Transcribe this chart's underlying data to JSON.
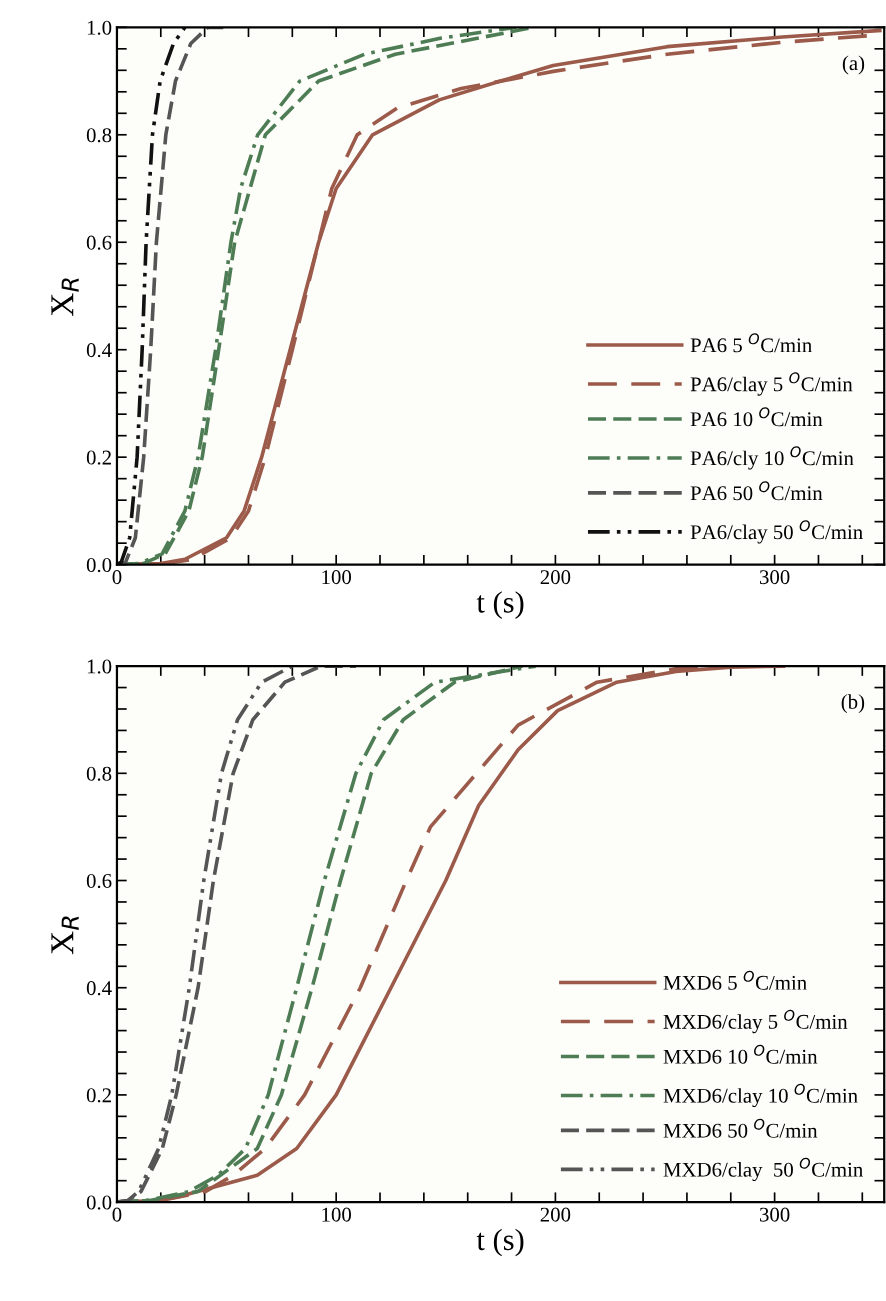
{
  "chart_data": [
    {
      "type": "line",
      "xlabel": "t (s)",
      "ylabel": "X$_{R}$",
      "annotations": [
        "(a)"
      ],
      "legend": "lower right",
      "grid": false,
      "xlim": [
        0,
        350
      ],
      "ylim": [
        0,
        1.0
      ],
      "xticks": [
        0,
        {
          "value": 20,
          "label": null
        },
        {
          "value": 40,
          "label": null
        },
        {
          "value": 60,
          "label": null
        },
        {
          "value": 80,
          "label": null
        },
        100,
        {
          "value": 120,
          "label": null
        },
        {
          "value": 140,
          "label": null
        },
        {
          "value": 160,
          "label": null
        },
        {
          "value": 180,
          "label": null
        },
        200,
        {
          "value": 220,
          "label": null
        },
        {
          "value": 240,
          "label": null
        },
        {
          "value": 260,
          "label": null
        },
        {
          "value": 280,
          "label": null
        },
        300,
        {
          "value": 320,
          "label": null
        },
        {
          "value": 340,
          "label": null
        }
      ],
      "yticks": [
        {
          "value": 0,
          "label": "0.0"
        },
        {
          "value": 0.04,
          "label": null
        },
        {
          "value": 0.08,
          "label": null
        },
        {
          "value": 0.12,
          "label": null
        },
        {
          "value": 0.16,
          "label": null
        },
        {
          "value": 0.2,
          "label": "0.2"
        },
        {
          "value": 0.24,
          "label": null
        },
        {
          "value": 0.28,
          "label": null
        },
        {
          "value": 0.32,
          "label": null
        },
        {
          "value": 0.36,
          "label": null
        },
        {
          "value": 0.4,
          "label": "0.4"
        },
        {
          "value": 0.44,
          "label": null
        },
        {
          "value": 0.48,
          "label": null
        },
        {
          "value": 0.52,
          "label": null
        },
        {
          "value": 0.56,
          "label": null
        },
        {
          "value": 0.6,
          "label": "0.6"
        },
        {
          "value": 0.64,
          "label": null
        },
        {
          "value": 0.68,
          "label": null
        },
        {
          "value": 0.72,
          "label": null
        },
        {
          "value": 0.76,
          "label": null
        },
        {
          "value": 0.8,
          "label": "0.8"
        },
        {
          "value": 0.84,
          "label": null
        },
        {
          "value": 0.88,
          "label": null
        },
        {
          "value": 0.92,
          "label": null
        },
        {
          "value": 0.96,
          "label": null
        },
        {
          "value": 1.0,
          "label": "1.0"
        }
      ],
      "series": [
        {
          "name": "PA6 5 $^{O}$C/min",
          "color": "#9b5a4a",
          "line_style": "solid",
          "x": [
            0,
            20,
            31,
            50,
            58,
            66,
            79,
            92,
            100,
            116.6,
            147,
            175,
            199,
            251,
            303.6,
            348
          ],
          "values": [
            0,
            0.002,
            0.01,
            0.05,
            0.1,
            0.2,
            0.4,
            0.6,
            0.7,
            0.8,
            0.865,
            0.9,
            0.929,
            0.964,
            0.982,
            0.994
          ]
        },
        {
          "name": "PA6/clay 5 $^{O}$C/min",
          "color": "#9b5a4a",
          "line_style": "long_dashed",
          "x": [
            0,
            22,
            34.5,
            52,
            60,
            67.7,
            80,
            92,
            98,
            109.6,
            128,
            157,
            199,
            251,
            303,
            348
          ],
          "values": [
            0,
            0.002,
            0.01,
            0.05,
            0.1,
            0.2,
            0.4,
            0.6,
            0.7,
            0.8,
            0.85,
            0.886,
            0.918,
            0.95,
            0.972,
            0.986
          ]
        },
        {
          "name": "PA6 10 $^{O}$C/min",
          "color": "#4e7d55",
          "line_style": "dashed",
          "x": [
            0,
            12,
            22,
            32.8,
            38.9,
            46.4,
            53.7,
            67.7,
            92,
            127,
            165,
            190
          ],
          "values": [
            0,
            0.002,
            0.02,
            0.1,
            0.2,
            0.4,
            0.6,
            0.8,
            0.9,
            0.95,
            0.98,
            1.0
          ]
        },
        {
          "name": "PA6/cly 10 $^{O}$C/min",
          "color": "#4e7d55",
          "line_style": "dashdot",
          "x": [
            0,
            10,
            20.6,
            31,
            37,
            45,
            52,
            56.4,
            64.2,
            83.4,
            113,
            148,
            182
          ],
          "values": [
            0,
            0.002,
            0.02,
            0.1,
            0.2,
            0.4,
            0.6,
            0.7,
            0.8,
            0.9,
            0.95,
            0.98,
            1.0
          ]
        },
        {
          "name": "PA6 50 $^{O}$C/min",
          "color": "#555555",
          "line_style": "dashed",
          "x": [
            0,
            4,
            8.4,
            12.2,
            15.4,
            18,
            22.3,
            26.7,
            33.7,
            41.5,
            48.5
          ],
          "values": [
            0,
            0.005,
            0.05,
            0.2,
            0.4,
            0.6,
            0.8,
            0.9,
            0.97,
            1.0,
            1.0
          ]
        },
        {
          "name": "PA6/clay 50 $^{O}$C/min",
          "color": "#111111",
          "line_style": "dashdotdot",
          "x": [
            0,
            2,
            5.8,
            9.2,
            11.5,
            13.3,
            16.2,
            19.7,
            25.8,
            31
          ],
          "values": [
            0,
            0.005,
            0.05,
            0.2,
            0.4,
            0.6,
            0.8,
            0.9,
            0.97,
            1.0
          ]
        }
      ]
    },
    {
      "type": "line",
      "xlabel": "t (s)",
      "ylabel": "X$_{R}$",
      "annotations": [
        "(b)"
      ],
      "legend": "lower right",
      "grid": false,
      "xlim": [
        0,
        350
      ],
      "ylim": [
        0,
        1.0
      ],
      "xticks": [
        0,
        {
          "value": 20,
          "label": null
        },
        {
          "value": 40,
          "label": null
        },
        {
          "value": 60,
          "label": null
        },
        {
          "value": 80,
          "label": null
        },
        100,
        {
          "value": 120,
          "label": null
        },
        {
          "value": 140,
          "label": null
        },
        {
          "value": 160,
          "label": null
        },
        {
          "value": 180,
          "label": null
        },
        200,
        {
          "value": 220,
          "label": null
        },
        {
          "value": 240,
          "label": null
        },
        {
          "value": 260,
          "label": null
        },
        {
          "value": 280,
          "label": null
        },
        300,
        {
          "value": 320,
          "label": null
        },
        {
          "value": 340,
          "label": null
        }
      ],
      "yticks": [
        {
          "value": 0,
          "label": "0.0"
        },
        {
          "value": 0.04,
          "label": null
        },
        {
          "value": 0.08,
          "label": null
        },
        {
          "value": 0.12,
          "label": null
        },
        {
          "value": 0.16,
          "label": null
        },
        {
          "value": 0.2,
          "label": "0.2"
        },
        {
          "value": 0.24,
          "label": null
        },
        {
          "value": 0.28,
          "label": null
        },
        {
          "value": 0.32,
          "label": null
        },
        {
          "value": 0.36,
          "label": null
        },
        {
          "value": 0.4,
          "label": "0.4"
        },
        {
          "value": 0.44,
          "label": null
        },
        {
          "value": 0.48,
          "label": null
        },
        {
          "value": 0.52,
          "label": null
        },
        {
          "value": 0.56,
          "label": null
        },
        {
          "value": 0.6,
          "label": "0.6"
        },
        {
          "value": 0.64,
          "label": null
        },
        {
          "value": 0.68,
          "label": null
        },
        {
          "value": 0.72,
          "label": null
        },
        {
          "value": 0.76,
          "label": null
        },
        {
          "value": 0.8,
          "label": "0.8"
        },
        {
          "value": 0.84,
          "label": null
        },
        {
          "value": 0.88,
          "label": null
        },
        {
          "value": 0.92,
          "label": null
        },
        {
          "value": 0.96,
          "label": null
        },
        {
          "value": 1.0,
          "label": "1.0"
        }
      ],
      "series": [
        {
          "name": "MXD6 5 $^{O}$C/min",
          "color": "#9b5a4a",
          "line_style": "solid",
          "x": [
            0,
            15,
            28,
            64,
            82,
            100,
            125,
            150,
            165,
            183,
            201,
            228,
            255,
            280,
            304
          ],
          "values": [
            0,
            0.001,
            0.01,
            0.05,
            0.1,
            0.2,
            0.4,
            0.6,
            0.74,
            0.844,
            0.917,
            0.97,
            0.99,
            0.998,
            1.0
          ]
        },
        {
          "name": "MXD6/clay 5 $^{O}$C/min",
          "color": "#9b5a4a",
          "line_style": "long_dashed",
          "x": [
            0,
            20,
            40.5,
            53,
            67.6,
            85.6,
            111,
            132,
            143,
            183,
            219,
            255,
            270
          ],
          "values": [
            0,
            0.003,
            0.02,
            0.05,
            0.1,
            0.2,
            0.4,
            0.6,
            0.7,
            0.89,
            0.97,
            0.995,
            1.0
          ]
        },
        {
          "name": "MXD6 10 $^{O}$C/min",
          "color": "#4e7d55",
          "line_style": "dashed",
          "x": [
            0,
            15,
            37,
            64,
            75,
            89,
            102,
            116,
            130.6,
            154,
            185
          ],
          "values": [
            0,
            0.003,
            0.02,
            0.1,
            0.2,
            0.4,
            0.6,
            0.8,
            0.9,
            0.97,
            1.0
          ]
        },
        {
          "name": "MXD6/clay 10 $^{O}$C/min",
          "color": "#4e7d55",
          "line_style": "dashdot",
          "x": [
            0,
            15,
            33,
            46,
            58.6,
            69,
            82,
            94.6,
            109,
            121.6,
            145,
            191
          ],
          "values": [
            0,
            0.004,
            0.02,
            0.05,
            0.1,
            0.2,
            0.4,
            0.6,
            0.8,
            0.9,
            0.97,
            1.0
          ]
        },
        {
          "name": "MXD6 50 $^{O}$C/min",
          "color": "#555555",
          "line_style": "dashed",
          "x": [
            0,
            5,
            11,
            20.7,
            27,
            37,
            44,
            53,
            62,
            76.6,
            93,
            109
          ],
          "values": [
            0,
            0.003,
            0.02,
            0.1,
            0.2,
            0.4,
            0.6,
            0.8,
            0.9,
            0.97,
            1.0,
            1.0
          ]
        },
        {
          "name": "MXD6/clay  50 $^{O}$C/min",
          "color": "#555555",
          "line_style": "dashdotdot",
          "x": [
            0,
            5,
            9.9,
            19,
            25,
            33,
            39.6,
            47.7,
            55,
            66,
            80
          ],
          "values": [
            0,
            0.003,
            0.02,
            0.1,
            0.2,
            0.4,
            0.6,
            0.8,
            0.9,
            0.97,
            1.0
          ]
        }
      ]
    }
  ]
}
